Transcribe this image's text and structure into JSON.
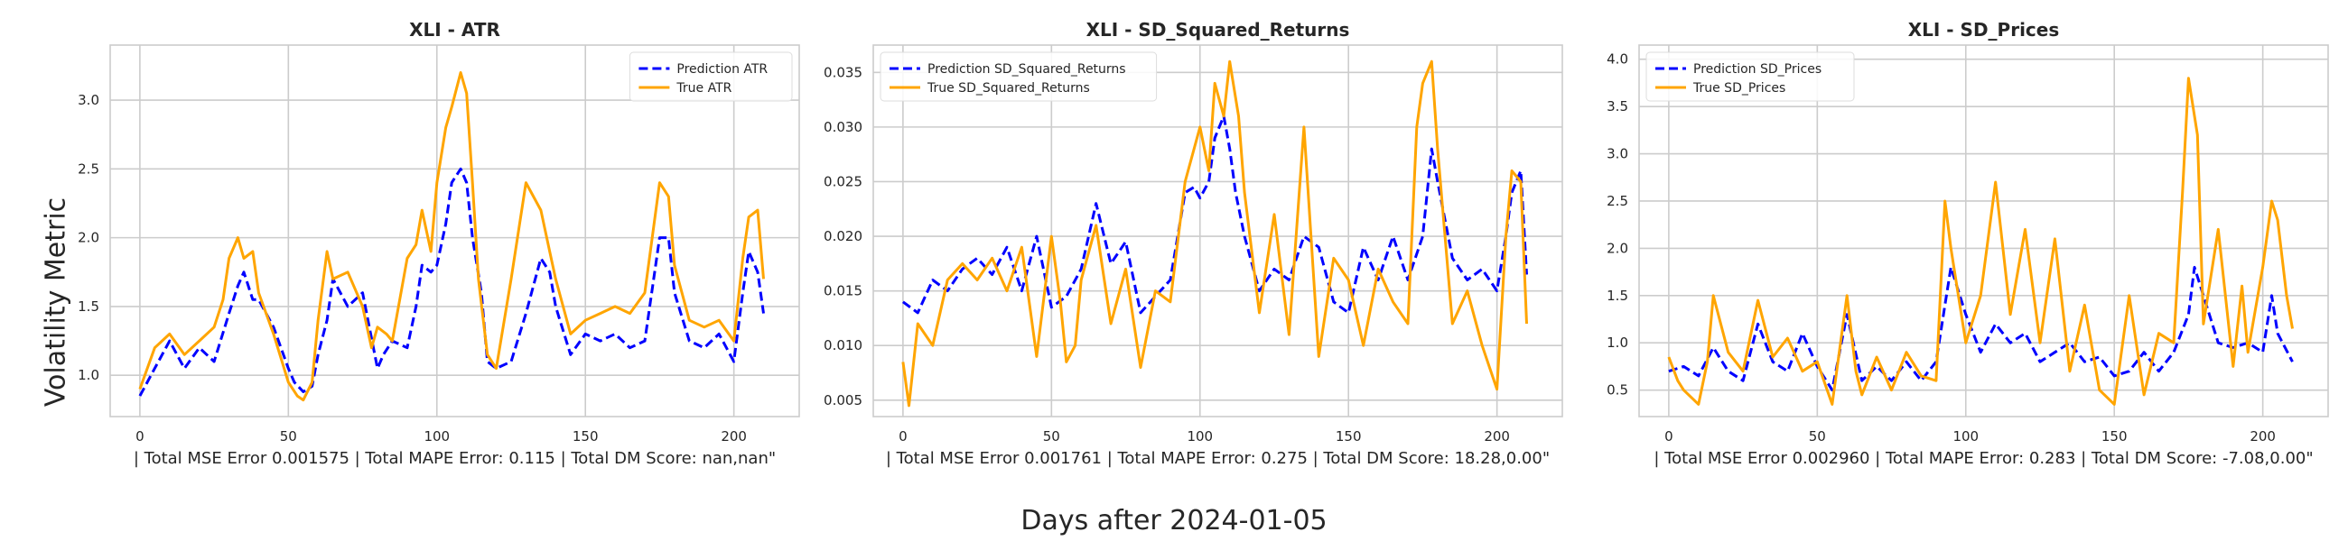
{
  "figure": {
    "ylabel": "Volatility Metric",
    "xlabel": "Days after 2024-01-05"
  },
  "chart_data": [
    {
      "type": "line",
      "title": "XLI - ATR",
      "xlabel": "| Total MSE Error 0.001575 | Total MAPE Error: 0.115 | Total DM Score: nan,nan\"",
      "ylabel": "",
      "xlim": [
        -10,
        222
      ],
      "ylim": [
        0.7,
        3.4
      ],
      "xticks": [
        0,
        50,
        100,
        150,
        200
      ],
      "yticks": [
        1.0,
        1.5,
        2.0,
        2.5,
        3.0
      ],
      "ytick_labels": [
        "1.0",
        "1.5",
        "2.0",
        "2.5",
        "3.0"
      ],
      "grid": true,
      "legend_position": "top-right",
      "colors": {
        "Prediction ATR": "#0000ff",
        "True ATR": "#ffa500"
      },
      "series": [
        {
          "name": "Prediction ATR",
          "style": "dashed",
          "x": [
            0,
            5,
            10,
            15,
            20,
            25,
            30,
            33,
            35,
            38,
            40,
            45,
            50,
            52,
            55,
            58,
            60,
            63,
            65,
            70,
            75,
            80,
            82,
            85,
            90,
            93,
            95,
            98,
            100,
            103,
            105,
            108,
            110,
            112,
            115,
            117,
            120,
            125,
            130,
            135,
            138,
            140,
            145,
            150,
            155,
            160,
            165,
            170,
            175,
            178,
            180,
            185,
            190,
            195,
            200,
            203,
            205,
            208,
            210
          ],
          "y": [
            0.85,
            1.05,
            1.25,
            1.05,
            1.2,
            1.1,
            1.45,
            1.65,
            1.75,
            1.55,
            1.55,
            1.35,
            1.05,
            0.95,
            0.88,
            0.92,
            1.15,
            1.4,
            1.7,
            1.5,
            1.6,
            1.05,
            1.15,
            1.25,
            1.2,
            1.5,
            1.8,
            1.75,
            1.8,
            2.1,
            2.4,
            2.5,
            2.4,
            2.0,
            1.6,
            1.1,
            1.05,
            1.1,
            1.45,
            1.85,
            1.75,
            1.5,
            1.15,
            1.3,
            1.25,
            1.3,
            1.2,
            1.25,
            2.0,
            2.0,
            1.6,
            1.25,
            1.2,
            1.3,
            1.1,
            1.6,
            1.9,
            1.75,
            1.45
          ]
        },
        {
          "name": "True ATR",
          "style": "solid",
          "x": [
            0,
            5,
            10,
            15,
            20,
            25,
            28,
            30,
            33,
            35,
            38,
            40,
            45,
            50,
            53,
            55,
            58,
            60,
            63,
            65,
            70,
            75,
            78,
            80,
            83,
            85,
            90,
            93,
            95,
            98,
            100,
            103,
            105,
            108,
            110,
            112,
            114,
            117,
            120,
            125,
            130,
            135,
            138,
            140,
            145,
            150,
            155,
            160,
            165,
            170,
            175,
            178,
            180,
            185,
            190,
            195,
            200,
            203,
            205,
            208,
            210
          ],
          "y": [
            0.9,
            1.2,
            1.3,
            1.15,
            1.25,
            1.35,
            1.55,
            1.85,
            2.0,
            1.85,
            1.9,
            1.6,
            1.3,
            0.95,
            0.85,
            0.82,
            0.95,
            1.4,
            1.9,
            1.7,
            1.75,
            1.5,
            1.2,
            1.35,
            1.3,
            1.25,
            1.85,
            1.95,
            2.2,
            1.9,
            2.4,
            2.8,
            2.95,
            3.2,
            3.05,
            2.4,
            1.7,
            1.15,
            1.05,
            1.7,
            2.4,
            2.2,
            1.9,
            1.7,
            1.3,
            1.4,
            1.45,
            1.5,
            1.45,
            1.6,
            2.4,
            2.3,
            1.8,
            1.4,
            1.35,
            1.4,
            1.25,
            1.85,
            2.15,
            2.2,
            1.7
          ]
        }
      ]
    },
    {
      "type": "line",
      "title": "XLI - SD_Squared_Returns",
      "xlabel": "| Total MSE Error 0.001761 | Total MAPE Error: 0.275 | Total DM Score: 18.28,0.00\"",
      "ylabel": "",
      "xlim": [
        -10,
        222
      ],
      "ylim": [
        0.0035,
        0.0375
      ],
      "xticks": [
        0,
        50,
        100,
        150,
        200
      ],
      "yticks": [
        0.005,
        0.01,
        0.015,
        0.02,
        0.025,
        0.03,
        0.035
      ],
      "ytick_labels": [
        "0.005",
        "0.010",
        "0.015",
        "0.020",
        "0.025",
        "0.030",
        "0.035"
      ],
      "grid": true,
      "legend_position": "top-left",
      "colors": {
        "Prediction SD_Squared_Returns": "#0000ff",
        "True SD_Squared_Returns": "#ffa500"
      },
      "series": [
        {
          "name": "Prediction SD_Squared_Returns",
          "style": "dashed",
          "x": [
            0,
            5,
            10,
            15,
            20,
            25,
            30,
            35,
            40,
            45,
            50,
            55,
            60,
            65,
            70,
            75,
            80,
            85,
            90,
            95,
            98,
            100,
            103,
            105,
            108,
            110,
            112,
            115,
            120,
            125,
            130,
            135,
            140,
            145,
            150,
            155,
            160,
            165,
            170,
            175,
            178,
            180,
            185,
            190,
            195,
            200,
            203,
            205,
            208,
            210
          ],
          "y": [
            0.014,
            0.013,
            0.016,
            0.015,
            0.017,
            0.018,
            0.0165,
            0.019,
            0.015,
            0.02,
            0.0135,
            0.0145,
            0.017,
            0.023,
            0.0175,
            0.0195,
            0.013,
            0.0145,
            0.016,
            0.024,
            0.0245,
            0.0235,
            0.025,
            0.029,
            0.031,
            0.028,
            0.024,
            0.02,
            0.015,
            0.017,
            0.016,
            0.02,
            0.019,
            0.014,
            0.013,
            0.019,
            0.016,
            0.02,
            0.016,
            0.02,
            0.028,
            0.025,
            0.018,
            0.016,
            0.017,
            0.015,
            0.02,
            0.024,
            0.026,
            0.0165
          ]
        },
        {
          "name": "True SD_Squared_Returns",
          "style": "solid",
          "x": [
            0,
            2,
            5,
            10,
            15,
            20,
            25,
            30,
            35,
            40,
            45,
            50,
            53,
            55,
            58,
            60,
            65,
            70,
            75,
            80,
            85,
            90,
            95,
            98,
            100,
            103,
            105,
            108,
            110,
            113,
            115,
            120,
            125,
            130,
            135,
            140,
            145,
            150,
            155,
            160,
            165,
            170,
            173,
            175,
            178,
            180,
            185,
            190,
            195,
            200,
            203,
            205,
            208,
            210
          ],
          "y": [
            0.0085,
            0.0045,
            0.012,
            0.01,
            0.016,
            0.0175,
            0.016,
            0.018,
            0.015,
            0.019,
            0.009,
            0.02,
            0.014,
            0.0085,
            0.01,
            0.016,
            0.021,
            0.012,
            0.017,
            0.008,
            0.015,
            0.014,
            0.025,
            0.028,
            0.03,
            0.026,
            0.034,
            0.031,
            0.036,
            0.031,
            0.024,
            0.013,
            0.022,
            0.011,
            0.03,
            0.009,
            0.018,
            0.016,
            0.01,
            0.017,
            0.014,
            0.012,
            0.03,
            0.034,
            0.036,
            0.028,
            0.012,
            0.015,
            0.01,
            0.006,
            0.02,
            0.026,
            0.025,
            0.012
          ]
        }
      ]
    },
    {
      "type": "line",
      "title": "XLI - SD_Prices",
      "xlabel": "| Total MSE Error 0.002960 | Total MAPE Error: 0.283 | Total DM Score: -7.08,0.00\"",
      "ylabel": "",
      "xlim": [
        -10,
        222
      ],
      "ylim": [
        0.22,
        4.15
      ],
      "xticks": [
        0,
        50,
        100,
        150,
        200
      ],
      "yticks": [
        0.5,
        1.0,
        1.5,
        2.0,
        2.5,
        3.0,
        3.5,
        4.0
      ],
      "ytick_labels": [
        "0.5",
        "1.0",
        "1.5",
        "2.0",
        "2.5",
        "3.0",
        "3.5",
        "4.0"
      ],
      "grid": true,
      "legend_position": "top-left",
      "colors": {
        "Prediction SD_Prices": "#0000ff",
        "True SD_Prices": "#ffa500"
      },
      "series": [
        {
          "name": "Prediction SD_Prices",
          "style": "dashed",
          "x": [
            0,
            5,
            10,
            15,
            20,
            25,
            30,
            35,
            40,
            45,
            50,
            55,
            60,
            65,
            70,
            75,
            80,
            85,
            90,
            93,
            95,
            98,
            100,
            105,
            110,
            115,
            120,
            125,
            130,
            135,
            140,
            145,
            150,
            155,
            160,
            165,
            170,
            175,
            177,
            180,
            185,
            190,
            195,
            200,
            203,
            205,
            210
          ],
          "y": [
            0.7,
            0.75,
            0.65,
            0.95,
            0.7,
            0.6,
            1.2,
            0.8,
            0.7,
            1.1,
            0.75,
            0.5,
            1.3,
            0.6,
            0.75,
            0.6,
            0.8,
            0.6,
            0.8,
            1.4,
            1.8,
            1.5,
            1.3,
            0.9,
            1.2,
            1.0,
            1.1,
            0.8,
            0.9,
            1.0,
            0.8,
            0.85,
            0.65,
            0.7,
            0.9,
            0.7,
            0.9,
            1.3,
            1.8,
            1.5,
            1.0,
            0.95,
            1.0,
            0.9,
            1.5,
            1.1,
            0.8
          ]
        },
        {
          "name": "True SD_Prices",
          "style": "solid",
          "x": [
            0,
            3,
            5,
            10,
            13,
            15,
            20,
            25,
            30,
            35,
            40,
            45,
            50,
            55,
            60,
            63,
            65,
            70,
            75,
            80,
            85,
            90,
            93,
            95,
            98,
            100,
            105,
            110,
            115,
            120,
            125,
            130,
            135,
            140,
            145,
            150,
            155,
            160,
            165,
            170,
            173,
            175,
            178,
            180,
            185,
            190,
            193,
            195,
            200,
            203,
            205,
            208,
            210
          ],
          "y": [
            0.85,
            0.6,
            0.5,
            0.35,
            0.8,
            1.5,
            0.9,
            0.7,
            1.45,
            0.85,
            1.05,
            0.7,
            0.8,
            0.35,
            1.5,
            0.7,
            0.45,
            0.85,
            0.5,
            0.9,
            0.65,
            0.6,
            2.5,
            2.0,
            1.4,
            1.0,
            1.5,
            2.7,
            1.3,
            2.2,
            1.0,
            2.1,
            0.7,
            1.4,
            0.5,
            0.35,
            1.5,
            0.45,
            1.1,
            1.0,
            2.6,
            3.8,
            3.2,
            1.2,
            2.2,
            0.75,
            1.6,
            0.9,
            1.8,
            2.5,
            2.3,
            1.5,
            1.15
          ]
        }
      ]
    }
  ]
}
